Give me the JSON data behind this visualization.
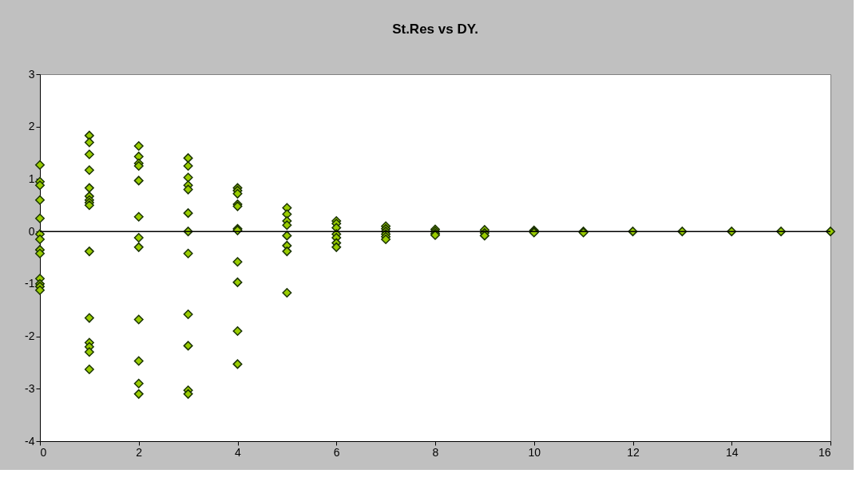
{
  "chart_data": {
    "type": "scatter",
    "title": "St.Res vs DY.",
    "series": [
      {
        "color": "#99cc00",
        "x": [
          0,
          0,
          0,
          0,
          0,
          0,
          0,
          0,
          0,
          0,
          0,
          0,
          0,
          1,
          1,
          1,
          1,
          1,
          1,
          1,
          1,
          1,
          1,
          1,
          1,
          1,
          1,
          1,
          2,
          2,
          2,
          2,
          2,
          2,
          2,
          2,
          2,
          2,
          2,
          2,
          3,
          3,
          3,
          3,
          3,
          3,
          3,
          3,
          3,
          3,
          3,
          3,
          4,
          4,
          4,
          4,
          4,
          4,
          4,
          4,
          4,
          4,
          4,
          5,
          5,
          5,
          5,
          5,
          5,
          5,
          5,
          6,
          6,
          6,
          6,
          6,
          6,
          6,
          7,
          7,
          7,
          7,
          7,
          7,
          8,
          8,
          8,
          8,
          9,
          9,
          9,
          10,
          10,
          10,
          11,
          11,
          12,
          13,
          14,
          15,
          16
        ],
        "values": [
          1.27,
          0.95,
          0.88,
          0.6,
          0.25,
          -0.05,
          -0.15,
          -0.35,
          -0.42,
          -0.9,
          -1.0,
          -1.05,
          -1.12,
          1.83,
          1.7,
          1.47,
          1.17,
          0.83,
          0.67,
          0.6,
          0.55,
          0.5,
          -0.38,
          -1.65,
          -2.12,
          -2.2,
          -2.3,
          -2.63,
          1.63,
          1.43,
          1.3,
          1.25,
          0.97,
          0.28,
          -0.12,
          -0.3,
          -1.68,
          -2.47,
          -2.9,
          -3.1,
          1.4,
          1.25,
          1.03,
          0.88,
          0.8,
          0.35,
          0.0,
          -0.42,
          -1.58,
          -2.18,
          -3.03,
          -3.1,
          0.83,
          0.78,
          0.72,
          0.52,
          0.48,
          0.05,
          0.02,
          -0.58,
          -0.97,
          -1.9,
          -2.53,
          0.45,
          0.33,
          0.2,
          0.12,
          -0.08,
          -0.27,
          -0.38,
          -1.17,
          0.2,
          0.15,
          0.07,
          -0.05,
          -0.12,
          -0.22,
          -0.3,
          0.1,
          0.05,
          0.0,
          -0.05,
          -0.1,
          -0.15,
          0.04,
          0.0,
          -0.04,
          -0.07,
          0.03,
          -0.03,
          -0.08,
          0.02,
          0.0,
          -0.02,
          0.0,
          -0.02,
          0.0,
          0.0,
          0.0,
          0.0,
          0.0
        ]
      }
    ],
    "xlim": [
      0,
      16
    ],
    "xticks": [
      0,
      2,
      4,
      6,
      8,
      10,
      12,
      14,
      16
    ],
    "ylim": [
      -4,
      3
    ],
    "yticks": [
      -4,
      -3,
      -2,
      -1,
      0,
      1,
      2,
      3
    ],
    "ref_lines": [
      {
        "axis": "y",
        "value": 0,
        "color": "#000000"
      }
    ],
    "marker": "diamond",
    "grid": false
  }
}
